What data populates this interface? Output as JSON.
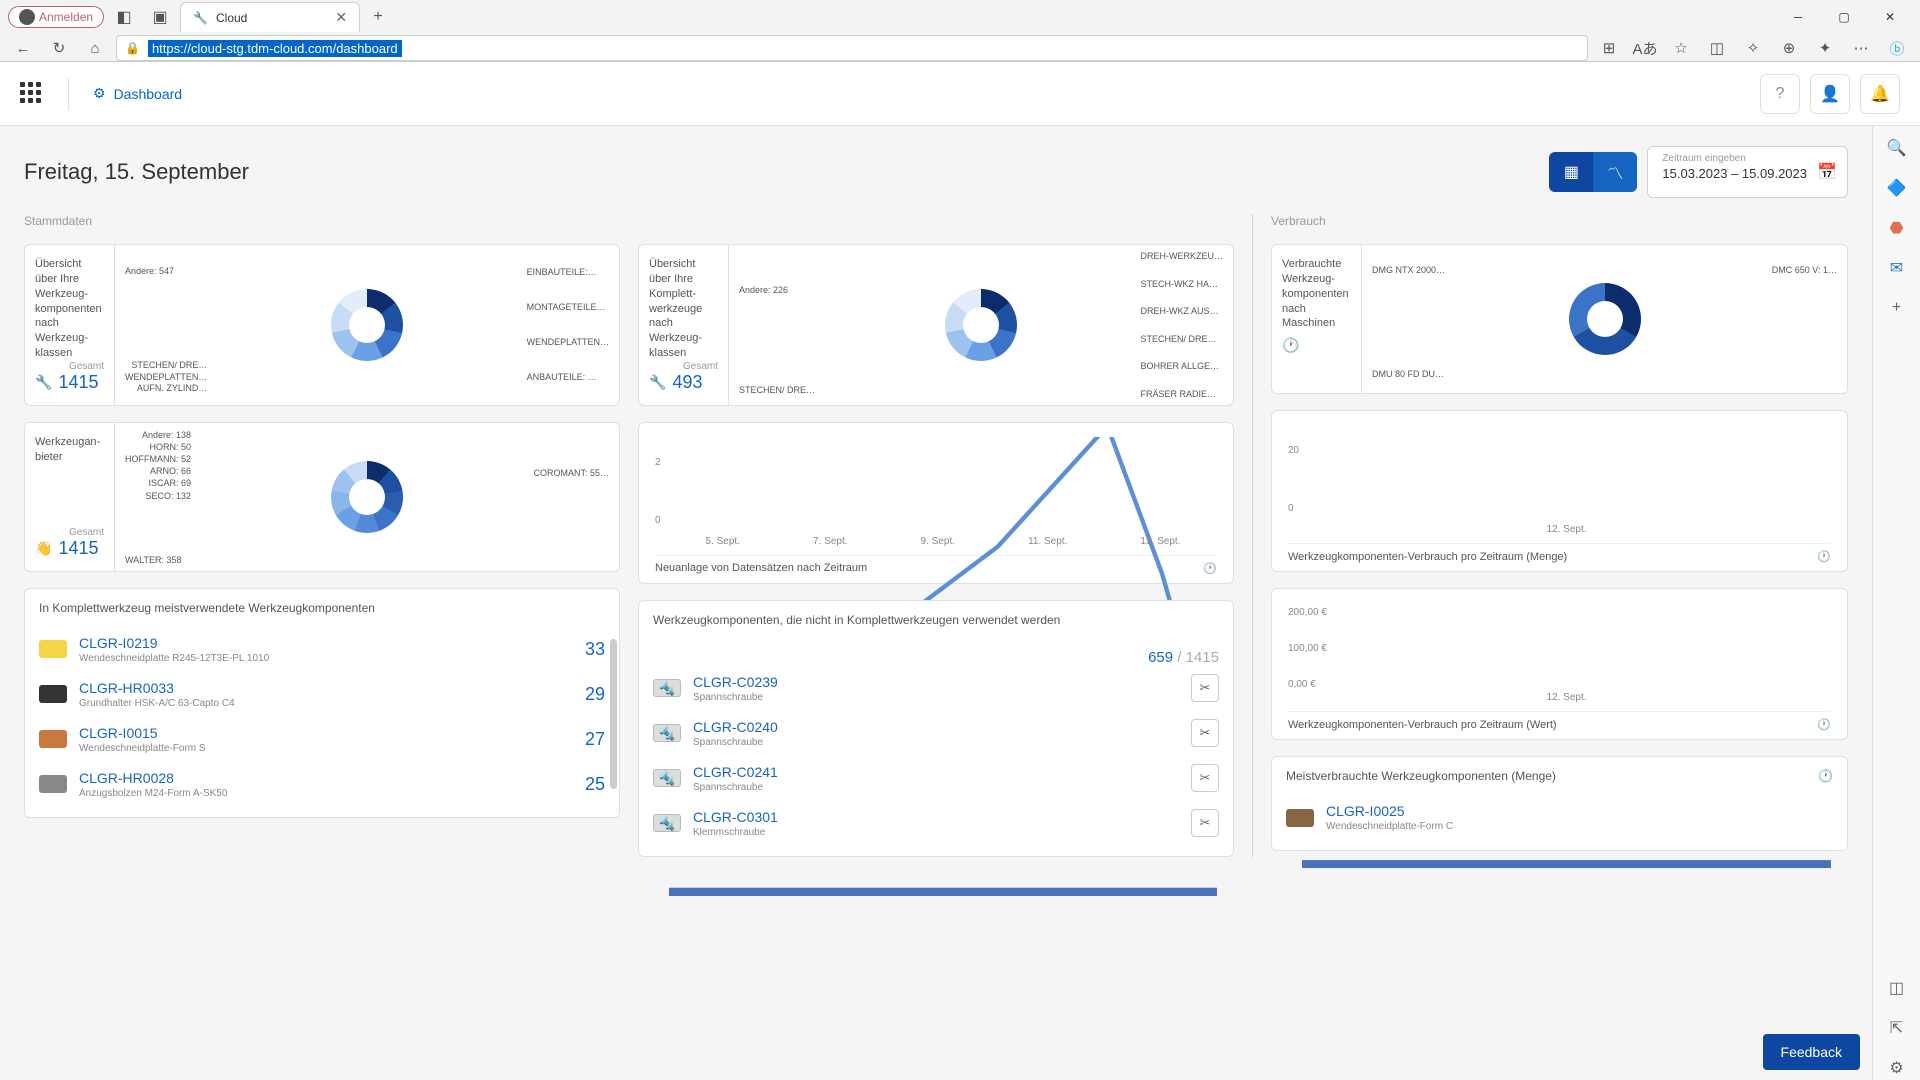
{
  "browser": {
    "profile_label": "Anmelden",
    "tab_title": "Cloud",
    "url": "https://cloud-stg.tdm-cloud.com/dashboard"
  },
  "header": {
    "breadcrumb": "Dashboard"
  },
  "page": {
    "date_title": "Freitag, 15. September",
    "daterange_label": "Zeitraum eingeben",
    "daterange_value": "15.03.2023  –  15.09.2023"
  },
  "sections": {
    "stammdaten": "Stammdaten",
    "verbrauch": "Verbrauch"
  },
  "card_komponenten": {
    "title": "Übersicht über Ihre Werkzeug­komponen­ten nach Werkzeug­klassen",
    "gesamt_label": "Gesamt",
    "gesamt_value": "1415",
    "donut_colors": [
      "#0d2c6b",
      "#1e50a2",
      "#3b73c9",
      "#6aa0e5",
      "#9ec2ef",
      "#c8dcf5",
      "#e3ecf9"
    ],
    "labels_left": [
      "Andere: 547",
      "STECHEN/ DRE…",
      "WENDEPLATTEN…",
      "AUFN. ZYLIND…"
    ],
    "labels_right": [
      "EINBAUTEILE:…",
      "MONTAGETEILE…",
      "WENDEPLATTEN…",
      "ANBAUTEILE: …"
    ]
  },
  "card_komplett": {
    "title": "Übersicht über Ihre Komplett­werkzeuge nach Werkzeug­klassen",
    "gesamt_label": "Gesamt",
    "gesamt_value": "493",
    "donut_colors": [
      "#0d2c6b",
      "#1e50a2",
      "#3b73c9",
      "#6aa0e5",
      "#9ec2ef",
      "#c8dcf5",
      "#e3ecf9"
    ],
    "labels_left": [
      "Andere: 226",
      "STECHEN/ DRE…"
    ],
    "labels_right": [
      "DREH-WERKZEU…",
      "STECH-WKZ HA…",
      "DREH-WKZ AUS…",
      "STECHEN/ DRE…",
      "BOHRER ALLGE…",
      "FRÄSER RADIE…"
    ]
  },
  "card_verbrauch_masch": {
    "title": "Verbrauchte Werkzeug­komponen­ten nach Maschinen",
    "donut_colors": [
      "#0d2c6b",
      "#1e50a2",
      "#3b73c9"
    ],
    "labels_left": [
      "DMG NTX 2000…",
      "DMU 80 FD DU…"
    ],
    "labels_right": [
      "DMC 650 V: 1…"
    ]
  },
  "card_anbieter": {
    "title": "Werkzeugan­bieter",
    "gesamt_label": "Gesamt",
    "gesamt_value": "1415",
    "donut_colors": [
      "#0d2c6b",
      "#1e50a2",
      "#2a5cb0",
      "#3b73c9",
      "#5589d6",
      "#6aa0e5",
      "#8bb4eb",
      "#9ec2ef",
      "#c8dcf5"
    ],
    "labels_left": [
      "Andere: 138",
      "HORN: 50",
      "HOFFMANN: 52",
      "ARNO: 66",
      "ISCAR: 69",
      "SECO: 132",
      "WALTER: 358"
    ],
    "labels_right": [
      "COROMANT: 55…"
    ]
  },
  "chart_neuanlage": {
    "title": "Neuanlage von Datensätzen nach Zeitraum",
    "y_ticks": [
      "2",
      "0"
    ],
    "x_ticks": [
      "5. Sept.",
      "7. Sept.",
      "9. Sept.",
      "11. Sept.",
      "13. Sept."
    ],
    "points": [
      [
        0,
        40
      ],
      [
        20,
        48
      ],
      [
        40,
        55
      ],
      [
        60,
        70
      ],
      [
        80,
        92
      ],
      [
        90,
        65
      ],
      [
        100,
        30
      ]
    ],
    "line_color": "#5c8fd6",
    "axis_color": "#4a72b8"
  },
  "chart_menge": {
    "title": "Werkzeugkomponenten-Verbrauch pro Zeitraum (Menge)",
    "y_ticks": [
      "20",
      "0"
    ],
    "x_ticks": [
      "12. Sept."
    ],
    "axis_color": "#4a72b8"
  },
  "chart_wert": {
    "title": "Werkzeugkomponenten-Verbrauch pro Zeitraum (Wert)",
    "y_ticks": [
      "200,00 €",
      "100,00 €",
      "0,00 €"
    ],
    "x_ticks": [
      "12. Sept."
    ],
    "axis_color": "#4a72b8"
  },
  "list_meist": {
    "title": "In Komplettwerkzeug meistverwendete Werkzeugkomponenten",
    "items": [
      {
        "id": "CLGR-I0219",
        "sub": "Wendeschneidplatte R245-12T3E-PL 1010",
        "count": "33",
        "thumb_bg": "#f5d548"
      },
      {
        "id": "CLGR-HR0033",
        "sub": "Grundhalter HSK-A/C 63-Capto C4",
        "count": "29",
        "thumb_bg": "#333333"
      },
      {
        "id": "CLGR-I0015",
        "sub": "Wendeschneidplatte-Form S",
        "count": "27",
        "thumb_bg": "#c97840"
      },
      {
        "id": "CLGR-HR0028",
        "sub": "Anzugsbolzen M24-Form A-SK50",
        "count": "25",
        "thumb_bg": "#888888"
      }
    ]
  },
  "list_unused": {
    "title": "Werkzeugkomponenten, die nicht in Komplettwerkzeugen verwendet werden",
    "ratio_a": "659",
    "ratio_b": " / 1415",
    "items": [
      {
        "id": "CLGR-C0239",
        "sub": "Spannschraube"
      },
      {
        "id": "CLGR-C0240",
        "sub": "Spannschraube"
      },
      {
        "id": "CLGR-C0241",
        "sub": "Spannschraube"
      },
      {
        "id": "CLGR-C0301",
        "sub": "Klemmschraube"
      }
    ]
  },
  "list_meistverbraucht": {
    "title": "Meistverbrauchte Werkzeugkomponenten (Menge)",
    "items": [
      {
        "id": "CLGR-I0025",
        "sub": "Wendeschneidplatte-Form C"
      }
    ]
  },
  "feedback": "Feedback"
}
